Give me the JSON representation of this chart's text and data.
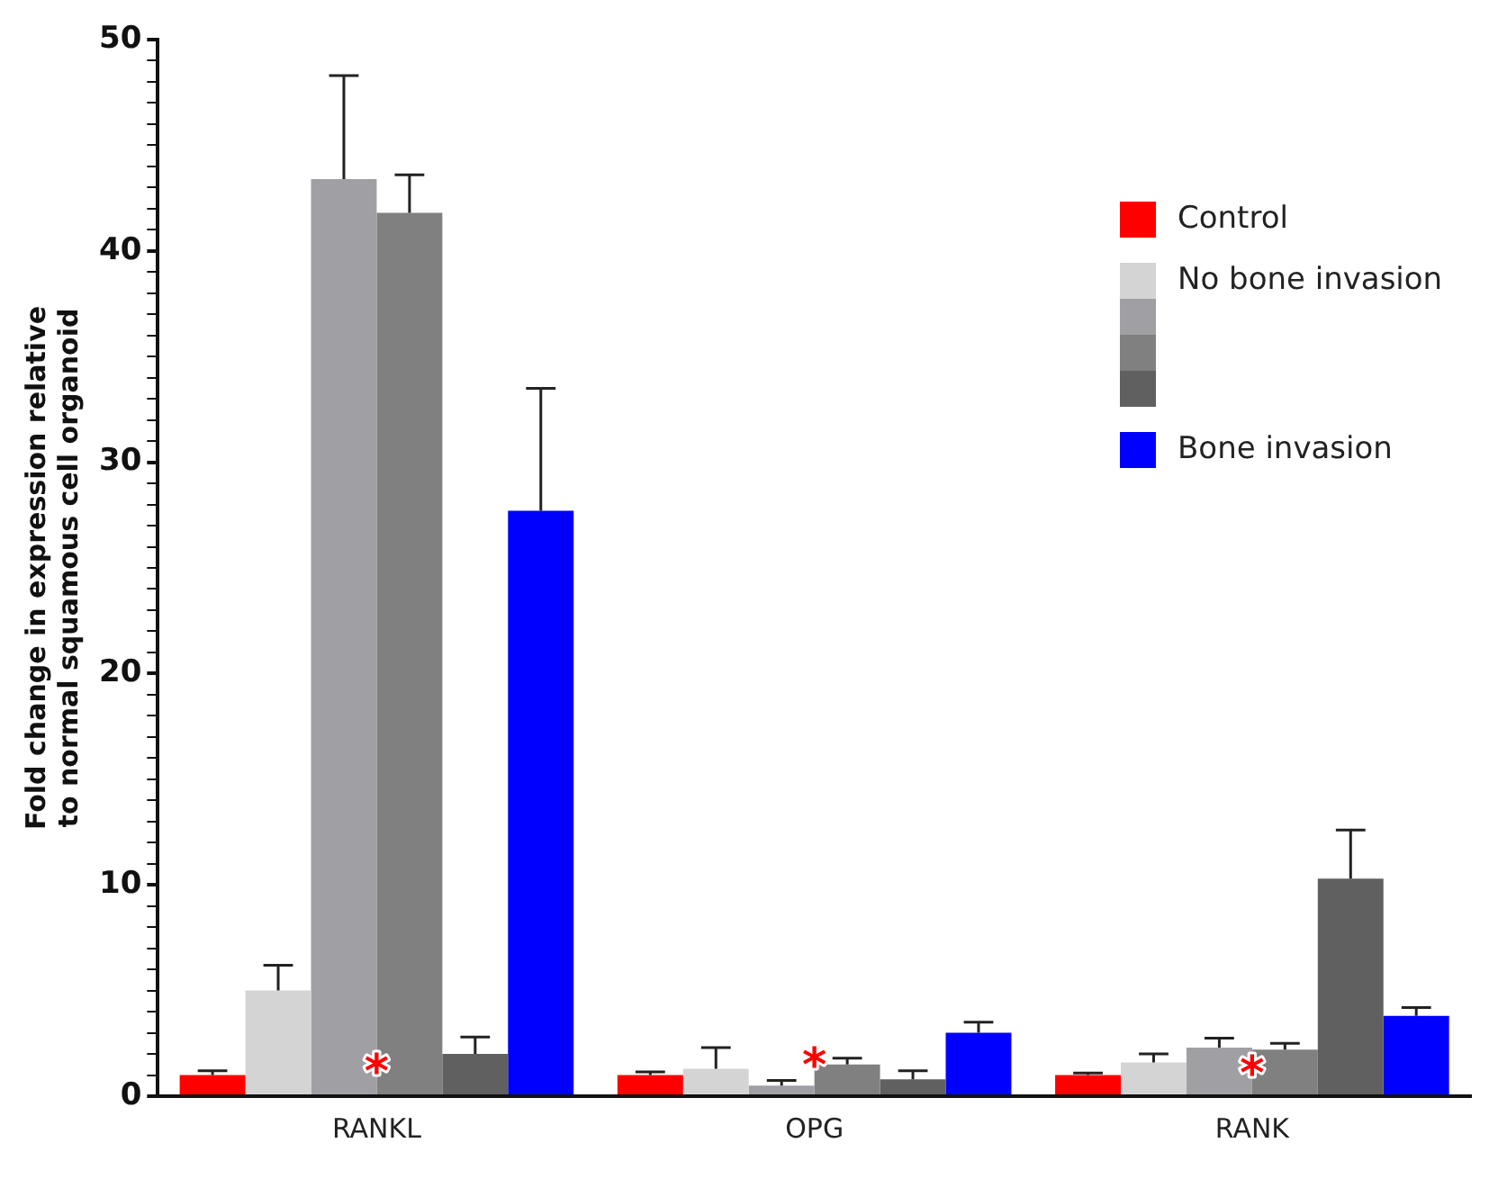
{
  "chart_data": {
    "type": "bar",
    "ylabel": "Fold change in expression relative to normal squamous cell organoid",
    "categories": [
      "RANKL",
      "OPG",
      "RANK"
    ],
    "series": [
      {
        "name": "Control",
        "color": "#ff0000",
        "values": [
          1.0,
          1.0,
          1.0
        ],
        "errors": [
          [
            1.0,
            1.2
          ],
          [
            1.0,
            1.15
          ],
          [
            1.0,
            1.1
          ]
        ]
      },
      {
        "name": "No bone invasion",
        "color": "#d4d4d4",
        "values": [
          5.0,
          1.3,
          1.6
        ],
        "errors": [
          [
            5.0,
            6.2
          ],
          [
            1.3,
            2.3
          ],
          [
            1.6,
            2.0
          ]
        ]
      },
      {
        "color": "#a0a0a4",
        "values": [
          43.4,
          0.5,
          2.3
        ],
        "errors": [
          [
            43.4,
            48.3
          ],
          [
            0.5,
            0.75
          ],
          [
            2.3,
            2.75
          ]
        ]
      },
      {
        "color": "#808080",
        "values": [
          41.8,
          1.5,
          2.2
        ],
        "errors": [
          [
            41.8,
            43.6
          ],
          [
            1.5,
            1.8
          ],
          [
            2.2,
            2.5
          ]
        ]
      },
      {
        "color": "#606060",
        "values": [
          2.0,
          0.8,
          10.3
        ],
        "errors": [
          [
            2.0,
            2.8
          ],
          [
            0.8,
            1.2
          ],
          [
            10.3,
            12.6
          ]
        ]
      },
      {
        "name": "Bone invasion",
        "color": "#0000ff",
        "values": [
          27.7,
          3.0,
          3.8
        ],
        "errors": [
          [
            27.7,
            33.5
          ],
          [
            3.0,
            3.5
          ],
          [
            3.8,
            4.2
          ]
        ]
      }
    ],
    "ylim": [
      0,
      50
    ],
    "yticks": [
      0,
      {
        "value": 1,
        "label": null
      },
      {
        "value": 2,
        "label": null
      },
      {
        "value": 3,
        "label": null
      },
      {
        "value": 4,
        "label": null
      },
      {
        "value": 5,
        "label": null
      },
      {
        "value": 6,
        "label": null
      },
      {
        "value": 7,
        "label": null
      },
      {
        "value": 8,
        "label": null
      },
      {
        "value": 9,
        "label": null
      },
      10,
      {
        "value": 11,
        "label": null
      },
      {
        "value": 12,
        "label": null
      },
      {
        "value": 13,
        "label": null
      },
      {
        "value": 14,
        "label": null
      },
      {
        "value": 15,
        "label": null
      },
      {
        "value": 16,
        "label": null
      },
      {
        "value": 17,
        "label": null
      },
      {
        "value": 18,
        "label": null
      },
      {
        "value": 19,
        "label": null
      },
      20,
      {
        "value": 21,
        "label": null
      },
      {
        "value": 22,
        "label": null
      },
      {
        "value": 23,
        "label": null
      },
      {
        "value": 24,
        "label": null
      },
      {
        "value": 25,
        "label": null
      },
      {
        "value": 26,
        "label": null
      },
      {
        "value": 27,
        "label": null
      },
      {
        "value": 28,
        "label": null
      },
      {
        "value": 29,
        "label": null
      },
      30,
      {
        "value": 31,
        "label": null
      },
      {
        "value": 32,
        "label": null
      },
      {
        "value": 33,
        "label": null
      },
      {
        "value": 34,
        "label": null
      },
      {
        "value": 35,
        "label": null
      },
      {
        "value": 36,
        "label": null
      },
      {
        "value": 37,
        "label": null
      },
      {
        "value": 38,
        "label": null
      },
      {
        "value": 39,
        "label": null
      },
      40,
      {
        "value": 41,
        "label": null
      },
      {
        "value": 42,
        "label": null
      },
      {
        "value": 43,
        "label": null
      },
      {
        "value": 44,
        "label": null
      },
      {
        "value": 45,
        "label": null
      },
      {
        "value": 46,
        "label": null
      },
      {
        "value": 47,
        "label": null
      },
      {
        "value": 48,
        "label": null
      },
      {
        "value": 49,
        "label": null
      },
      50
    ],
    "annotations": [
      {
        "text": "*",
        "x": "RANKL",
        "y": 1.0
      },
      {
        "text": "*",
        "x": "OPG",
        "y": 1.3
      },
      {
        "text": "*",
        "x": "RANK",
        "y": 0.9
      }
    ],
    "grid": false,
    "legend": "top right"
  }
}
